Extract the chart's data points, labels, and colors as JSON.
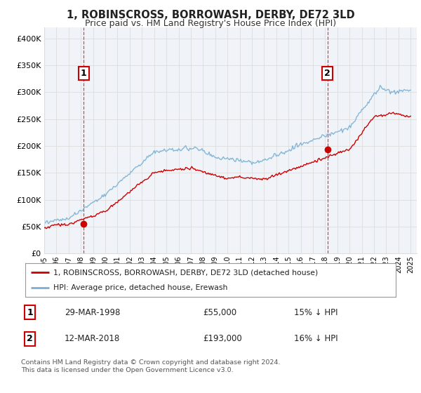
{
  "title": "1, ROBINSCROSS, BORROWASH, DERBY, DE72 3LD",
  "subtitle": "Price paid vs. HM Land Registry's House Price Index (HPI)",
  "ylabel_ticks": [
    "£0",
    "£50K",
    "£100K",
    "£150K",
    "£200K",
    "£250K",
    "£300K",
    "£350K",
    "£400K"
  ],
  "ytick_values": [
    0,
    50000,
    100000,
    150000,
    200000,
    250000,
    300000,
    350000,
    400000
  ],
  "ylim": [
    0,
    420000
  ],
  "xlim_start": 1995.0,
  "xlim_end": 2025.5,
  "sale1_x": 1998.23,
  "sale1_y": 55000,
  "sale1_label": "1",
  "sale1_date": "29-MAR-1998",
  "sale1_price": "£55,000",
  "sale1_pct": "15% ↓ HPI",
  "sale2_x": 2018.19,
  "sale2_y": 193000,
  "sale2_label": "2",
  "sale2_date": "12-MAR-2018",
  "sale2_price": "£193,000",
  "sale2_pct": "16% ↓ HPI",
  "line_color_red": "#cc0000",
  "line_color_blue": "#7ab0d4",
  "grid_color": "#dddddd",
  "bg_chart": "#f0f4f8",
  "background_color": "#ffffff",
  "legend1_label": "1, ROBINSCROSS, BORROWASH, DERBY, DE72 3LD (detached house)",
  "legend2_label": "HPI: Average price, detached house, Erewash",
  "footer": "Contains HM Land Registry data © Crown copyright and database right 2024.\nThis data is licensed under the Open Government Licence v3.0.",
  "xtick_years": [
    1995,
    1996,
    1997,
    1998,
    1999,
    2000,
    2001,
    2002,
    2003,
    2004,
    2005,
    2006,
    2007,
    2008,
    2009,
    2010,
    2011,
    2012,
    2013,
    2014,
    2015,
    2016,
    2017,
    2018,
    2019,
    2020,
    2021,
    2022,
    2023,
    2024,
    2025
  ]
}
